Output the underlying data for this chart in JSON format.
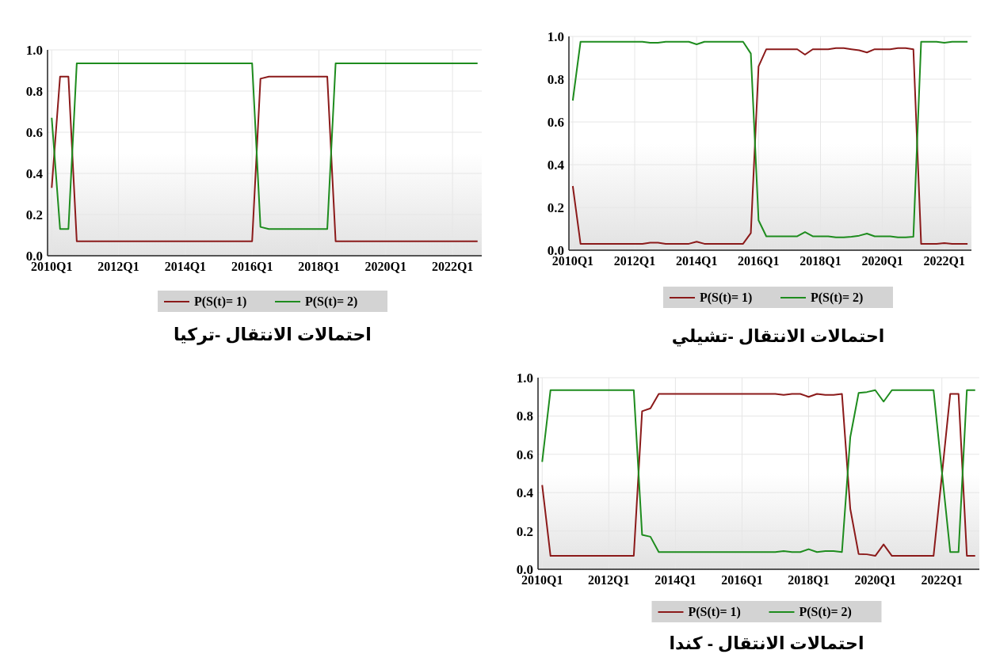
{
  "chart_data": [
    {
      "type": "line",
      "title": "احتمالات الانتقال -تركيا",
      "legend": "bottom",
      "grid": true,
      "ylim": [
        0,
        1
      ],
      "yticks": [
        {
          "value": 0,
          "label": "0.0"
        },
        {
          "value": 0.2,
          "label": "0.2"
        },
        {
          "value": 0.4,
          "label": "0.4"
        },
        {
          "value": 0.6,
          "label": "0.6"
        },
        {
          "value": 0.8,
          "label": "0.8"
        },
        {
          "value": 1,
          "label": "1.0"
        }
      ],
      "categories": [
        "2010Q1",
        null,
        null,
        null,
        null,
        null,
        null,
        null,
        "2012Q1",
        null,
        null,
        null,
        null,
        null,
        null,
        null,
        "2014Q1",
        null,
        null,
        null,
        null,
        null,
        null,
        null,
        "2016Q1",
        null,
        null,
        null,
        null,
        null,
        null,
        null,
        "2018Q1",
        null,
        null,
        null,
        null,
        null,
        null,
        null,
        "2020Q1",
        null,
        null,
        null,
        null,
        null,
        null,
        null,
        "2022Q1",
        null,
        null,
        null
      ],
      "series": [
        {
          "name": "P(S(t)= 1)",
          "color": "#8b1a1a",
          "values": [
            0.33,
            0.87,
            0.87,
            0.07,
            0.07,
            0.07,
            0.07,
            0.07,
            0.07,
            0.07,
            0.07,
            0.07,
            0.07,
            0.07,
            0.07,
            0.07,
            0.07,
            0.07,
            0.07,
            0.07,
            0.07,
            0.07,
            0.07,
            0.07,
            0.07,
            0.86,
            0.87,
            0.87,
            0.87,
            0.87,
            0.87,
            0.87,
            0.87,
            0.87,
            0.07,
            0.07,
            0.07,
            0.07,
            0.07,
            0.07,
            0.07,
            0.07,
            0.07,
            0.07,
            0.07,
            0.07,
            0.07,
            0.07,
            0.07,
            0.07,
            0.07,
            0.07
          ]
        },
        {
          "name": "P(S(t)= 2)",
          "color": "#1e8c1e",
          "values": [
            0.67,
            0.13,
            0.13,
            0.935,
            0.935,
            0.935,
            0.935,
            0.935,
            0.935,
            0.935,
            0.935,
            0.935,
            0.935,
            0.935,
            0.935,
            0.935,
            0.935,
            0.935,
            0.935,
            0.935,
            0.935,
            0.935,
            0.935,
            0.935,
            0.935,
            0.14,
            0.13,
            0.13,
            0.13,
            0.13,
            0.13,
            0.13,
            0.13,
            0.13,
            0.935,
            0.935,
            0.935,
            0.935,
            0.935,
            0.935,
            0.935,
            0.935,
            0.935,
            0.935,
            0.935,
            0.935,
            0.935,
            0.935,
            0.935,
            0.935,
            0.935,
            0.935
          ]
        }
      ]
    },
    {
      "type": "line",
      "title": "احتمالات الانتقال -تشيلي",
      "legend": "bottom",
      "grid": true,
      "ylim": [
        0,
        1
      ],
      "yticks": [
        {
          "value": 0,
          "label": "0.0"
        },
        {
          "value": 0.2,
          "label": "0.2"
        },
        {
          "value": 0.4,
          "label": "0.4"
        },
        {
          "value": 0.6,
          "label": "0.6"
        },
        {
          "value": 0.8,
          "label": "0.8"
        },
        {
          "value": 1,
          "label": "1.0"
        }
      ],
      "categories": [
        "2010Q1",
        null,
        null,
        null,
        null,
        null,
        null,
        null,
        "2012Q1",
        null,
        null,
        null,
        null,
        null,
        null,
        null,
        "2014Q1",
        null,
        null,
        null,
        null,
        null,
        null,
        null,
        "2016Q1",
        null,
        null,
        null,
        null,
        null,
        null,
        null,
        "2018Q1",
        null,
        null,
        null,
        null,
        null,
        null,
        null,
        "2020Q1",
        null,
        null,
        null,
        null,
        null,
        null,
        null,
        "2022Q1",
        null,
        null,
        null
      ],
      "series": [
        {
          "name": "P(S(t)= 1)",
          "color": "#8b1a1a",
          "values": [
            0.3,
            0.03,
            0.03,
            0.03,
            0.03,
            0.03,
            0.03,
            0.03,
            0.03,
            0.03,
            0.035,
            0.035,
            0.03,
            0.03,
            0.03,
            0.03,
            0.04,
            0.03,
            0.03,
            0.03,
            0.03,
            0.03,
            0.03,
            0.08,
            0.86,
            0.94,
            0.94,
            0.94,
            0.94,
            0.94,
            0.915,
            0.94,
            0.94,
            0.94,
            0.945,
            0.945,
            0.94,
            0.935,
            0.925,
            0.94,
            0.94,
            0.94,
            0.945,
            0.945,
            0.94,
            0.03,
            0.03,
            0.03,
            0.033,
            0.03,
            0.03,
            0.03
          ]
        },
        {
          "name": "P(S(t)= 2)",
          "color": "#1e8c1e",
          "values": [
            0.7,
            0.975,
            0.975,
            0.975,
            0.975,
            0.975,
            0.975,
            0.975,
            0.975,
            0.975,
            0.97,
            0.97,
            0.975,
            0.975,
            0.975,
            0.975,
            0.963,
            0.975,
            0.975,
            0.975,
            0.975,
            0.975,
            0.975,
            0.92,
            0.14,
            0.065,
            0.065,
            0.065,
            0.065,
            0.065,
            0.085,
            0.065,
            0.065,
            0.065,
            0.06,
            0.06,
            0.063,
            0.068,
            0.078,
            0.065,
            0.065,
            0.065,
            0.06,
            0.06,
            0.063,
            0.975,
            0.975,
            0.975,
            0.97,
            0.975,
            0.975,
            0.975
          ]
        }
      ]
    },
    {
      "type": "line",
      "title": "احتمالات الانتقال - كندا",
      "legend": "bottom",
      "grid": true,
      "ylim": [
        0,
        1
      ],
      "yticks": [
        {
          "value": 0,
          "label": "0.0"
        },
        {
          "value": 0.2,
          "label": "0.2"
        },
        {
          "value": 0.4,
          "label": "0.4"
        },
        {
          "value": 0.6,
          "label": "0.6"
        },
        {
          "value": 0.8,
          "label": "0.8"
        },
        {
          "value": 1,
          "label": "1.0"
        }
      ],
      "categories": [
        "2010Q1",
        null,
        null,
        null,
        null,
        null,
        null,
        null,
        "2012Q1",
        null,
        null,
        null,
        null,
        null,
        null,
        null,
        "2014Q1",
        null,
        null,
        null,
        null,
        null,
        null,
        null,
        "2016Q1",
        null,
        null,
        null,
        null,
        null,
        null,
        null,
        "2018Q1",
        null,
        null,
        null,
        null,
        null,
        null,
        null,
        "2020Q1",
        null,
        null,
        null,
        null,
        null,
        null,
        null,
        "2022Q1",
        null,
        null,
        null,
        null
      ],
      "series": [
        {
          "name": "P(S(t)= 1)",
          "color": "#8b1a1a",
          "values": [
            0.44,
            0.07,
            0.07,
            0.07,
            0.07,
            0.07,
            0.07,
            0.07,
            0.07,
            0.07,
            0.07,
            0.07,
            0.825,
            0.84,
            0.915,
            0.915,
            0.915,
            0.915,
            0.915,
            0.915,
            0.915,
            0.915,
            0.915,
            0.915,
            0.915,
            0.915,
            0.915,
            0.915,
            0.915,
            0.91,
            0.915,
            0.915,
            0.9,
            0.915,
            0.91,
            0.91,
            0.915,
            0.315,
            0.08,
            0.078,
            0.07,
            0.13,
            0.07,
            0.07,
            0.07,
            0.07,
            0.07,
            0.07,
            0.49,
            0.915,
            0.915,
            0.07,
            0.07
          ]
        },
        {
          "name": "P(S(t)= 2)",
          "color": "#1e8c1e",
          "values": [
            0.56,
            0.935,
            0.935,
            0.935,
            0.935,
            0.935,
            0.935,
            0.935,
            0.935,
            0.935,
            0.935,
            0.935,
            0.18,
            0.17,
            0.09,
            0.09,
            0.09,
            0.09,
            0.09,
            0.09,
            0.09,
            0.09,
            0.09,
            0.09,
            0.09,
            0.09,
            0.09,
            0.09,
            0.09,
            0.095,
            0.09,
            0.09,
            0.105,
            0.09,
            0.095,
            0.095,
            0.09,
            0.69,
            0.92,
            0.925,
            0.935,
            0.875,
            0.935,
            0.935,
            0.935,
            0.935,
            0.935,
            0.935,
            0.51,
            0.09,
            0.09,
            0.935,
            0.935
          ]
        }
      ]
    }
  ]
}
